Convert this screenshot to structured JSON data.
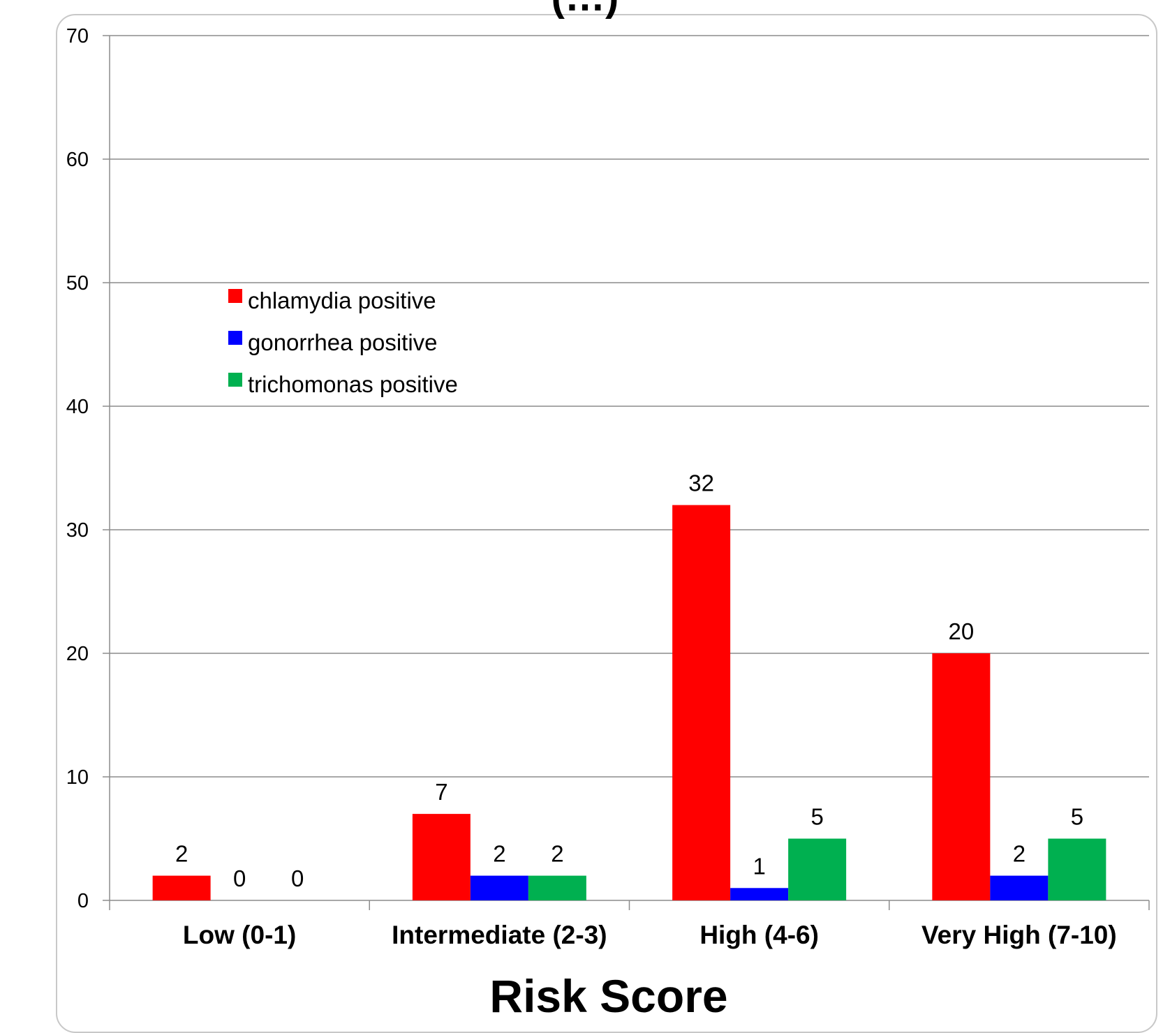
{
  "chart_data": {
    "type": "bar",
    "title": "(…)",
    "xlabel": "Risk Score",
    "ylabel": "",
    "ylim": [
      0,
      70
    ],
    "yticks": [
      0,
      10,
      20,
      30,
      40,
      50,
      60,
      70
    ],
    "grid": true,
    "legend_position": "upper-left inside plot",
    "categories": [
      "Low (0-1)",
      "Intermediate (2-3)",
      "High (4-6)",
      "Very High (7-10)"
    ],
    "series": [
      {
        "name": "chlamydia positive",
        "color": "#ff0000",
        "values": [
          2,
          7,
          32,
          20
        ]
      },
      {
        "name": "gonorrhea positive",
        "color": "#0000ff",
        "values": [
          0,
          2,
          1,
          2
        ]
      },
      {
        "name": "trichomonas positive",
        "color": "#00b050",
        "values": [
          0,
          2,
          5,
          5
        ]
      }
    ],
    "data_labels": true
  }
}
